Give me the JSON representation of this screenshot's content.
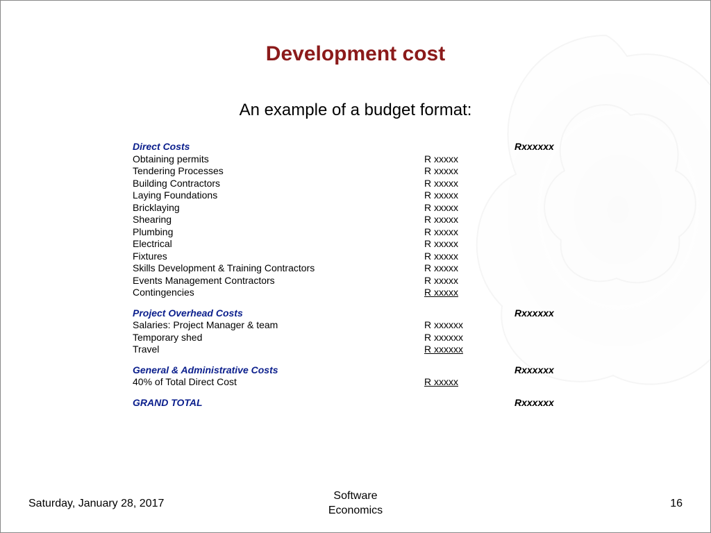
{
  "title": "Development cost",
  "subtitle": "An example of a budget format:",
  "sections": [
    {
      "header": "Direct Costs",
      "total": "Rxxxxxx",
      "items": [
        {
          "label": "Obtaining permits",
          "value": "R xxxxx"
        },
        {
          "label": "Tendering Processes",
          "value": "R xxxxx"
        },
        {
          "label": "Building Contractors",
          "value": "R xxxxx"
        },
        {
          "label": "Laying Foundations",
          "value": "R xxxxx"
        },
        {
          "label": "Bricklaying",
          "value": "R xxxxx"
        },
        {
          "label": "Shearing",
          "value": "R xxxxx"
        },
        {
          "label": "Plumbing",
          "value": "R xxxxx"
        },
        {
          "label": "Electrical",
          "value": "R xxxxx"
        },
        {
          "label": "Fixtures",
          "value": "R xxxxx"
        },
        {
          "label": "Skills Development & Training Contractors",
          "value": "R xxxxx"
        },
        {
          "label": "Events Management Contractors",
          "value": "R xxxxx"
        },
        {
          "label": "Contingencies",
          "value": "R xxxxx",
          "underline": true
        }
      ]
    },
    {
      "header": "Project Overhead Costs",
      "total": "Rxxxxxx",
      "items": [
        {
          "label": "Salaries: Project Manager & team",
          "value": "R xxxxxx"
        },
        {
          "label": "Temporary shed",
          "value": "R xxxxxx"
        },
        {
          "label": "Travel",
          "value": "R xxxxxx",
          "underline": true
        }
      ]
    },
    {
      "header": "General & Administrative Costs",
      "total": "Rxxxxxx",
      "items": [
        {
          "label": "40% of Total Direct Cost",
          "value": "R xxxxx",
          "underline": true
        }
      ]
    }
  ],
  "grand_total": {
    "label": "GRAND TOTAL",
    "total": "Rxxxxxx"
  },
  "footer": {
    "date": "Saturday, January 28, 2017",
    "center_line1": "Software",
    "center_line2": "Economics",
    "page": "16"
  },
  "colors": {
    "title": "#8b1a1a",
    "section_header": "#0a1e8c",
    "text": "#000000",
    "background": "#ffffff"
  }
}
